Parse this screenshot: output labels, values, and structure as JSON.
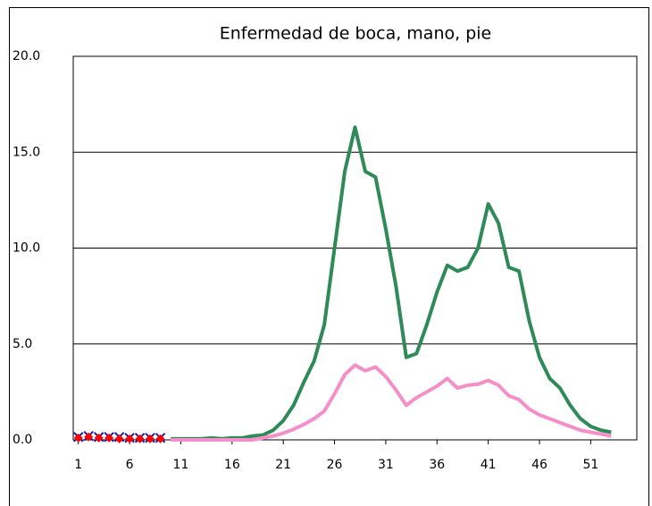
{
  "chart_data": {
    "type": "line",
    "title": "Enfermedad de boca, mano, pie",
    "xlim": [
      0.5,
      55.5
    ],
    "xticks": [
      1,
      6,
      11,
      16,
      21,
      26,
      31,
      36,
      41,
      46,
      51
    ],
    "ylim": [
      0,
      20
    ],
    "yticks": [
      {
        "value": 0,
        "label": "0.0"
      },
      {
        "value": 5,
        "label": "5.0"
      },
      {
        "value": 10,
        "label": "10.0"
      },
      {
        "value": 15,
        "label": "15.0"
      },
      {
        "value": 20,
        "label": "20.0"
      }
    ],
    "grid": true,
    "series": [
      {
        "color": "#2e8b57",
        "marker": "none",
        "x": [
          10,
          11,
          12,
          13,
          14,
          15,
          16,
          17,
          18,
          19,
          20,
          21,
          22,
          23,
          24,
          25,
          26,
          27,
          28,
          29,
          30,
          31,
          32,
          33,
          34,
          35,
          36,
          37,
          38,
          39,
          40,
          41,
          42,
          43,
          44,
          45,
          46,
          47,
          48,
          49,
          50,
          51,
          52,
          53
        ],
        "values": [
          0.05,
          0.05,
          0.05,
          0.05,
          0.1,
          0.05,
          0.1,
          0.1,
          0.2,
          0.25,
          0.5,
          1.0,
          1.8,
          3.0,
          4.1,
          6.0,
          10.0,
          14.0,
          16.3,
          14.0,
          13.7,
          11.0,
          8.0,
          4.3,
          4.5,
          6.0,
          7.7,
          9.1,
          8.8,
          9.0,
          10.0,
          12.3,
          11.3,
          9.0,
          8.8,
          6.2,
          4.3,
          3.2,
          2.7,
          1.8,
          1.1,
          0.7,
          0.5,
          0.4
        ]
      },
      {
        "color": "#f48fc8",
        "marker": "none",
        "x": [
          10,
          11,
          12,
          13,
          14,
          15,
          16,
          17,
          18,
          19,
          20,
          21,
          22,
          23,
          24,
          25,
          26,
          27,
          28,
          29,
          30,
          31,
          32,
          33,
          34,
          35,
          36,
          37,
          38,
          39,
          40,
          41,
          42,
          43,
          44,
          45,
          46,
          47,
          48,
          49,
          50,
          51,
          52,
          53
        ],
        "values": [
          0,
          0,
          0,
          0,
          0,
          0,
          0,
          0,
          0,
          0.1,
          0.2,
          0.35,
          0.55,
          0.8,
          1.1,
          1.5,
          2.4,
          3.4,
          3.9,
          3.6,
          3.8,
          3.3,
          2.6,
          1.8,
          2.2,
          2.5,
          2.8,
          3.2,
          2.7,
          2.85,
          2.9,
          3.1,
          2.85,
          2.3,
          2.1,
          1.6,
          1.3,
          1.1,
          0.9,
          0.7,
          0.5,
          0.4,
          0.3,
          0.2
        ]
      },
      {
        "color": "#1a1aa0",
        "marker": "x",
        "x": [
          1,
          2,
          3,
          4,
          5,
          6,
          7,
          8,
          9
        ],
        "values": [
          0.15,
          0.2,
          0.15,
          0.15,
          0.15,
          0.1,
          0.1,
          0.1,
          0.1
        ]
      },
      {
        "color": "#ff0000",
        "marker": "diamond",
        "x": [
          1,
          2,
          3,
          4,
          5,
          6,
          7,
          8,
          9
        ],
        "values": [
          0.1,
          0.15,
          0.1,
          0.1,
          0.05,
          0.05,
          0.05,
          0.05,
          0.05
        ]
      }
    ]
  }
}
